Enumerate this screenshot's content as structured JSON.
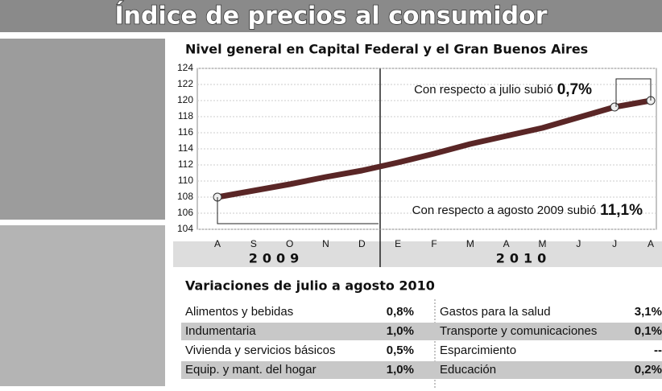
{
  "chart_data": {
    "type": "line",
    "title": "Índice de precios al consumidor",
    "subtitle": "Nivel general en Capital Federal y el Gran Buenos Aires",
    "categories": [
      "A",
      "S",
      "O",
      "N",
      "D",
      "E",
      "F",
      "M",
      "A",
      "M",
      "J",
      "J",
      "A"
    ],
    "year_labels": [
      "2009",
      "2010"
    ],
    "series": [
      {
        "color": "#5a2626",
        "values": [
          108.0,
          108.8,
          109.6,
          110.5,
          111.3,
          112.3,
          113.4,
          114.6,
          115.6,
          116.6,
          117.9,
          119.2,
          120.0
        ]
      }
    ],
    "ylim": [
      104,
      124
    ],
    "yticks": [
      104,
      106,
      108,
      110,
      112,
      114,
      116,
      118,
      120,
      122,
      124
    ],
    "grid": true,
    "annotations": [
      {
        "text": "Con respecto a julio subió",
        "emphasis": "0,7%"
      },
      {
        "text": "Con respecto a agosto 2009 subió",
        "emphasis": "11,1%"
      }
    ]
  },
  "table": {
    "title": "Variaciones de julio a agosto 2010",
    "rows": [
      [
        "Alimentos y bebidas",
        "0,8%",
        "Gastos para la salud",
        "3,1%"
      ],
      [
        "Indumentaria",
        "1,0%",
        "Transporte y comunicaciones",
        "0,1%"
      ],
      [
        "Vivienda y servicios básicos",
        "0,5%",
        "Esparcimiento",
        "--"
      ],
      [
        "Equip. y mant. del hogar",
        "1,0%",
        "Educación",
        "0,2%"
      ]
    ]
  }
}
